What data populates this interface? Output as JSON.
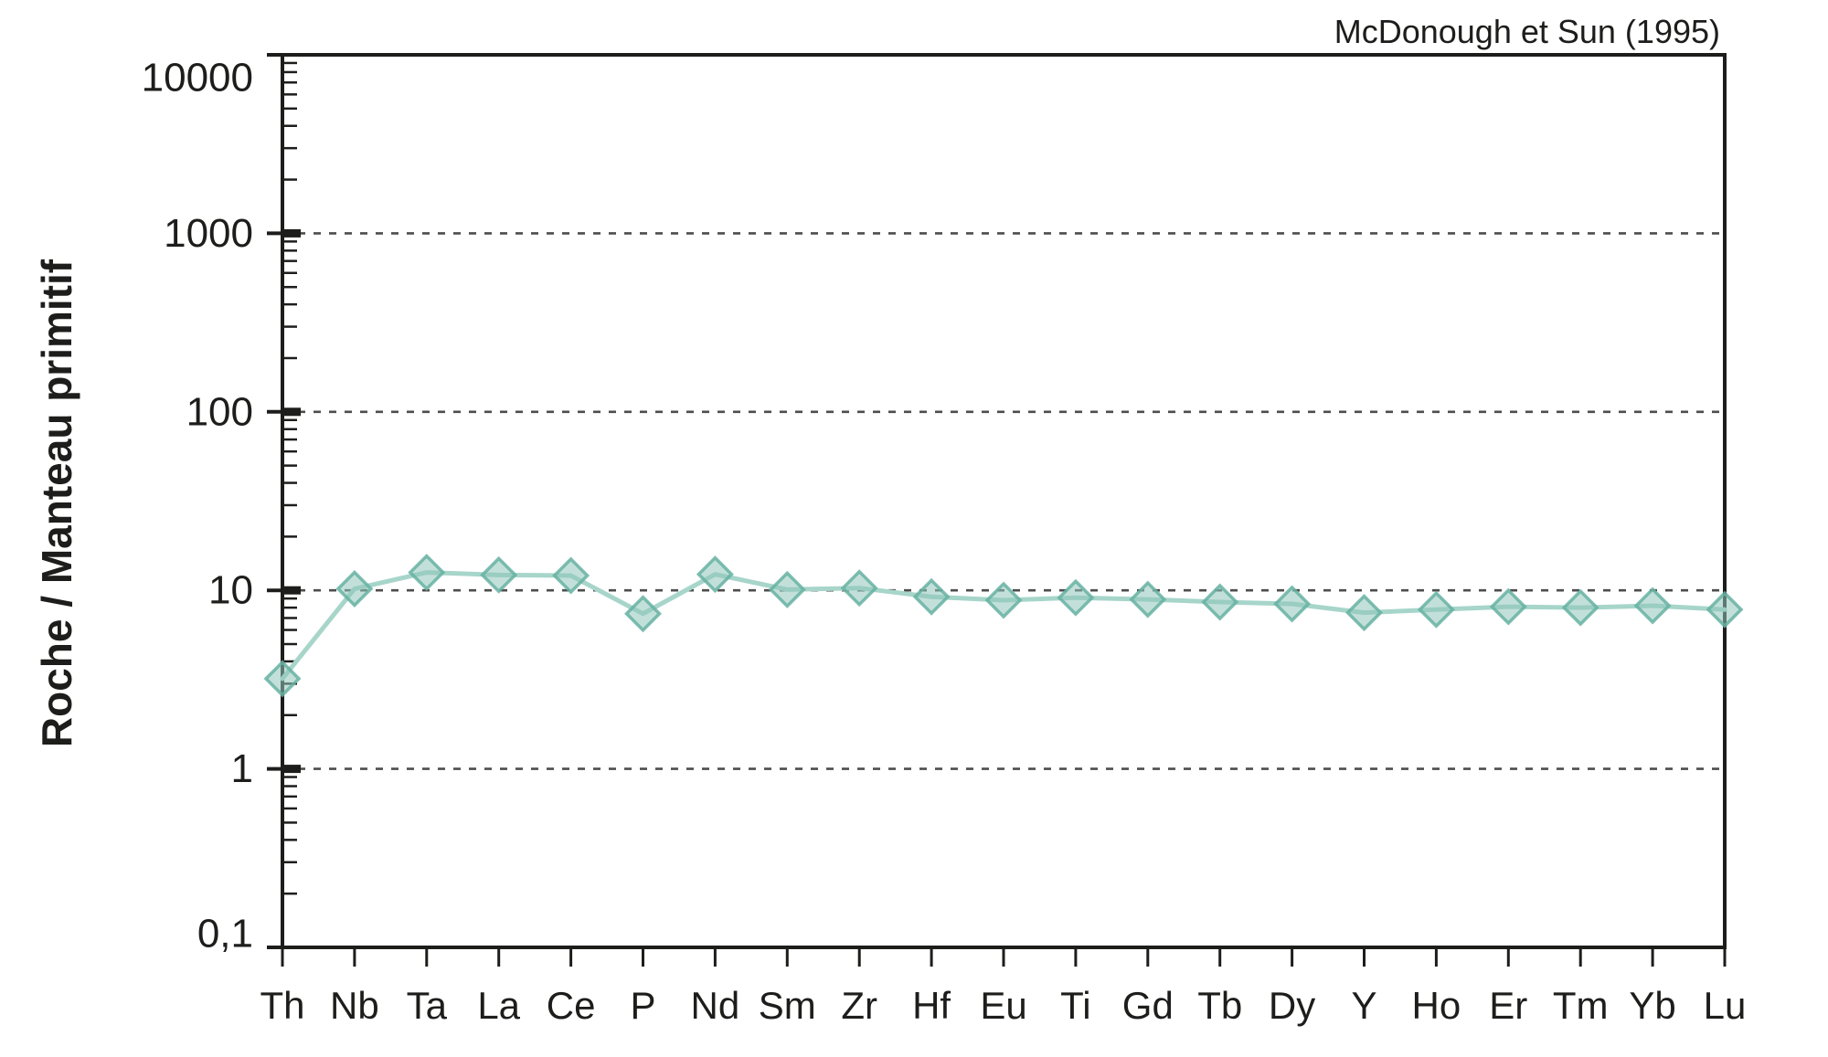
{
  "attribution": "McDonough et Sun (1995)",
  "chart_data": {
    "type": "line",
    "title": "McDonough et Sun (1995)",
    "xlabel": "",
    "ylabel": "Roche / Manteau primitif",
    "y_scale": "log",
    "ylim": [
      0.1,
      10000
    ],
    "grid": "dashed-horizontal-at-decades",
    "legend_position": "none",
    "marker": "diamond",
    "categories": [
      "Th",
      "Nb",
      "Ta",
      "La",
      "Ce",
      "P",
      "Nd",
      "Sm",
      "Zr",
      "Hf",
      "Eu",
      "Ti",
      "Gd",
      "Tb",
      "Dy",
      "Y",
      "Ho",
      "Er",
      "Tm",
      "Yb",
      "Lu"
    ],
    "series": [
      {
        "name": "Roche / Manteau primitif",
        "values": [
          3.2,
          10.2,
          12.6,
          12.2,
          12.1,
          7.4,
          12.3,
          10.1,
          10.3,
          9.2,
          8.8,
          9.1,
          8.9,
          8.6,
          8.4,
          7.5,
          7.8,
          8.1,
          8.0,
          8.2,
          7.8
        ]
      }
    ],
    "y_ticks": [
      {
        "value": 10000,
        "label": "10000"
      },
      {
        "value": 1000,
        "label": "1000"
      },
      {
        "value": 100,
        "label": "100"
      },
      {
        "value": 10,
        "label": "10"
      },
      {
        "value": 1,
        "label": "1"
      },
      {
        "value": 0.1,
        "label": "0,1"
      }
    ],
    "gridline_values": [
      1000,
      100,
      10,
      1
    ],
    "colors": {
      "line": "#a7d5ca",
      "marker_fill": "#8fc7b9",
      "marker_stroke": "#66b1a2",
      "axis": "#1d1d1b",
      "grid": "#4d4d4d",
      "text": "#1d1d1b"
    }
  }
}
